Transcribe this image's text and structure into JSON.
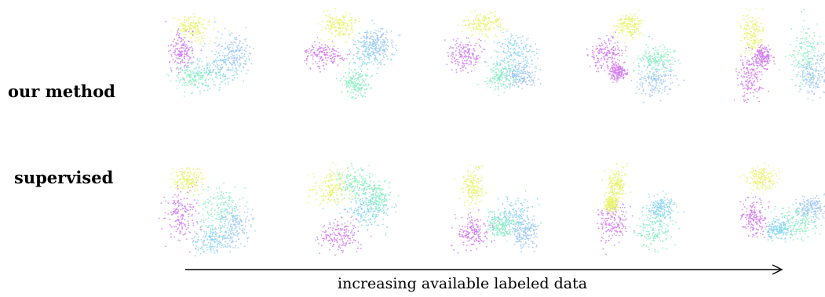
{
  "figure": {
    "rows": [
      {
        "label": "our method",
        "panels": 5
      },
      {
        "label": "supervised",
        "panels": 5
      }
    ],
    "arrow_caption": "increasing available labeled data",
    "cluster_colors": [
      "#e8f56a",
      "#d27af2",
      "#8ad4f5",
      "#86f0c0",
      "#9ec7f7"
    ]
  }
}
